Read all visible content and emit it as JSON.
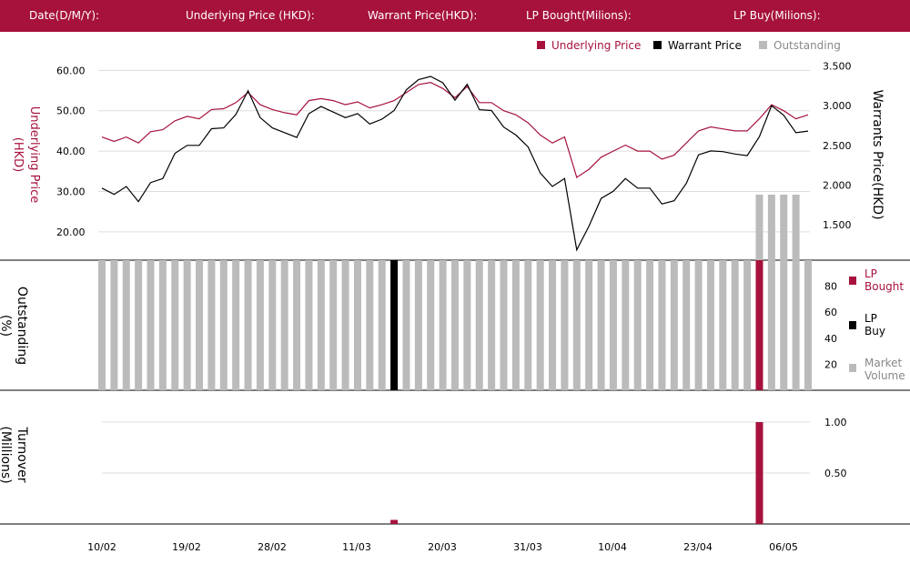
{
  "header": {
    "date_label": "Date(D/M/Y):",
    "underlying_label": "Underlying Price (HKD):",
    "warrant_label": "Warrant  Price(HKD):",
    "lp_bought_label": "LP Bought(Milions):",
    "lp_buy_label": "LP Buy(Milions):"
  },
  "colors": {
    "brand": "#a6123c",
    "underlying": "#a6123c",
    "warrant": "#000000",
    "outstanding": "#bbbbbb",
    "lp_bought": "#a6123c",
    "lp_buy": "#000000",
    "market_volume": "#bbbbbb"
  },
  "chart_data": [
    {
      "type": "line",
      "legend": [
        "Underlying Price",
        "Warrant  Price",
        "Outstanding"
      ],
      "legend_position": "top-right",
      "ylabel_left": "Underlying Price (HKD)",
      "ylabel_right": "Warrants  Price(HKD)",
      "y_left_ticks": [
        "60.00",
        "50.00",
        "40.00",
        "30.00",
        "20.00"
      ],
      "y_left_range": [
        13,
        63
      ],
      "y_right_ticks": [
        "3.500",
        "3.000",
        "2.500",
        "2.000",
        "1.500"
      ],
      "y_right_range": [
        1.05,
        3.6
      ],
      "series": [
        {
          "name": "Underlying Price",
          "values": [
            43.5,
            42.4,
            43.5,
            42.0,
            44.8,
            45.3,
            47.5,
            48.6,
            48.0,
            50.3,
            50.5,
            52.0,
            54.5,
            51.5,
            50.3,
            49.5,
            49.0,
            52.5,
            53.0,
            52.5,
            51.5,
            52.2,
            50.7,
            51.5,
            52.5,
            54.5,
            56.5,
            57.0,
            55.5,
            53.2,
            56.0,
            52.0,
            52.0,
            50.0,
            49.0,
            47.0,
            44.0,
            42.0,
            43.5,
            33.5,
            35.5,
            38.5,
            40.0,
            41.5,
            40.0,
            40.0,
            38.0,
            39.0,
            42.0,
            45.0,
            46.0,
            45.5,
            45.0,
            45.0,
            48.0,
            51.5,
            50.0,
            48.0,
            49.0
          ]
        },
        {
          "name": "Warrant  Price",
          "values": [
            1.96,
            1.88,
            1.98,
            1.79,
            2.03,
            2.08,
            2.4,
            2.5,
            2.5,
            2.71,
            2.72,
            2.89,
            3.19,
            2.85,
            2.72,
            2.66,
            2.6,
            2.9,
            2.99,
            2.92,
            2.85,
            2.9,
            2.77,
            2.83,
            2.94,
            3.2,
            3.33,
            3.37,
            3.29,
            3.07,
            3.27,
            2.95,
            2.94,
            2.73,
            2.63,
            2.48,
            2.15,
            1.98,
            2.08,
            1.18,
            1.48,
            1.83,
            1.92,
            2.08,
            1.96,
            1.96,
            1.76,
            1.8,
            2.02,
            2.38,
            2.43,
            2.42,
            2.39,
            2.37,
            2.61,
            3.0,
            2.88,
            2.66,
            2.68
          ]
        }
      ],
      "outstanding_values": [
        null,
        null,
        null,
        null,
        null,
        null,
        null,
        null,
        null,
        null,
        null,
        null,
        null,
        null,
        null,
        null,
        null,
        null,
        null,
        null,
        null,
        null,
        null,
        null,
        null,
        null,
        null,
        null,
        null,
        null,
        null,
        null,
        null,
        null,
        null,
        null,
        null,
        null,
        null,
        null,
        null,
        null,
        null,
        null,
        null,
        null,
        null,
        null,
        null,
        null,
        null,
        null,
        null,
        null,
        null,
        null,
        null,
        null,
        null
      ],
      "outstanding_overlay": [
        {
          "index": 54,
          "value": 100
        },
        {
          "index": 55,
          "value": 100
        },
        {
          "index": 56,
          "value": 100
        },
        {
          "index": 57,
          "value": 100
        }
      ],
      "bar_count": 59
    },
    {
      "type": "bar",
      "ylabel": "Outstanding (%)",
      "y_ticks": [
        "80",
        "60",
        "40",
        "20"
      ],
      "y_range": [
        0,
        100
      ],
      "legend": [
        "LP Bought",
        "LP Buy",
        "Market Volume"
      ],
      "legend_position": "right",
      "outstanding_pct": [
        100,
        100,
        100,
        100,
        100,
        100,
        100,
        100,
        100,
        100,
        100,
        100,
        100,
        100,
        100,
        100,
        100,
        100,
        100,
        100,
        100,
        100,
        100,
        100,
        100,
        100,
        100,
        100,
        100,
        100,
        100,
        100,
        100,
        100,
        100,
        100,
        100,
        100,
        100,
        100,
        100,
        100,
        100,
        100,
        100,
        100,
        100,
        100,
        100,
        100,
        100,
        100,
        100,
        100,
        100,
        100,
        100,
        100,
        100
      ],
      "lp_buy_index": 24,
      "lp_bought_index": 54
    },
    {
      "type": "bar",
      "ylabel": "Turnover (Millions)",
      "y_ticks": [
        "1.00",
        "0.50"
      ],
      "y_range": [
        0,
        1
      ],
      "turnover": [
        {
          "index": 24,
          "value": 0.04,
          "series": "LP Bought"
        },
        {
          "index": 54,
          "value": 1.0,
          "series": "LP Bought"
        }
      ],
      "x_tick_labels": [
        "10/02",
        "19/02",
        "28/02",
        "11/03",
        "20/03",
        "31/03",
        "10/04",
        "23/04",
        "06/05"
      ]
    }
  ]
}
